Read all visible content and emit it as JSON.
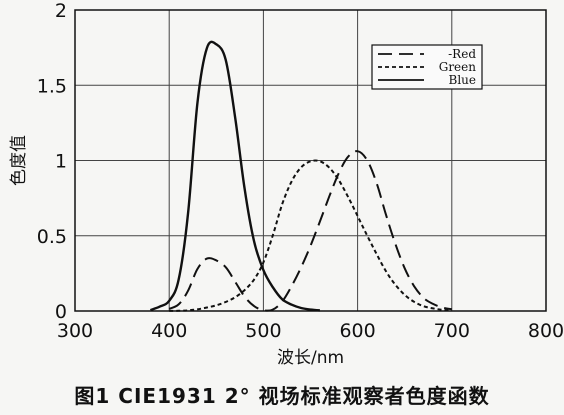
{
  "chart_data": {
    "type": "line",
    "xlabel": "波长/nm",
    "ylabel": "色度值",
    "xlim": [
      300,
      800
    ],
    "ylim": [
      0,
      2
    ],
    "xticks": [
      300,
      400,
      500,
      600,
      700,
      800
    ],
    "yticks": [
      0,
      0.5,
      1,
      1.5,
      2
    ],
    "ytick_labels": [
      "0",
      "0.5",
      "1",
      "1.5",
      "2"
    ],
    "grid": true,
    "legend_position": "top-right",
    "series": [
      {
        "name": "Red",
        "legend_label": "-Red",
        "style": "dashed",
        "x": [
          400,
          410,
          420,
          430,
          440,
          450,
          460,
          470,
          480,
          490,
          500,
          510,
          520,
          530,
          540,
          550,
          560,
          570,
          580,
          590,
          600,
          610,
          620,
          630,
          640,
          650,
          660,
          670,
          680,
          690,
          700
        ],
        "values": [
          0.014,
          0.044,
          0.134,
          0.28,
          0.348,
          0.336,
          0.291,
          0.195,
          0.096,
          0.033,
          0.005,
          0.009,
          0.063,
          0.166,
          0.29,
          0.433,
          0.595,
          0.762,
          0.916,
          1.026,
          1.062,
          1.003,
          0.854,
          0.642,
          0.448,
          0.284,
          0.165,
          0.087,
          0.047,
          0.023,
          0.011
        ]
      },
      {
        "name": "Green",
        "legend_label": "Green",
        "style": "dotted",
        "x": [
          400,
          410,
          420,
          430,
          440,
          450,
          460,
          470,
          480,
          490,
          500,
          510,
          520,
          530,
          540,
          550,
          560,
          570,
          580,
          590,
          600,
          610,
          620,
          630,
          640,
          650,
          660,
          670,
          680,
          690,
          700
        ],
        "values": [
          0.0004,
          0.0012,
          0.004,
          0.0116,
          0.023,
          0.038,
          0.06,
          0.091,
          0.139,
          0.208,
          0.323,
          0.503,
          0.71,
          0.862,
          0.954,
          0.995,
          0.995,
          0.952,
          0.87,
          0.757,
          0.631,
          0.503,
          0.381,
          0.265,
          0.175,
          0.107,
          0.061,
          0.032,
          0.017,
          0.008,
          0.004
        ]
      },
      {
        "name": "Blue",
        "legend_label": "Blue",
        "style": "solid",
        "x": [
          380,
          390,
          400,
          410,
          420,
          430,
          440,
          450,
          460,
          470,
          480,
          490,
          500,
          510,
          520,
          530,
          540,
          550,
          560
        ],
        "values": [
          0.006,
          0.029,
          0.068,
          0.207,
          0.646,
          1.386,
          1.747,
          1.772,
          1.669,
          1.288,
          0.813,
          0.465,
          0.272,
          0.158,
          0.078,
          0.042,
          0.02,
          0.009,
          0.004
        ]
      }
    ]
  },
  "caption": "图1  CIE1931 2° 视场标准观察者色度函数"
}
